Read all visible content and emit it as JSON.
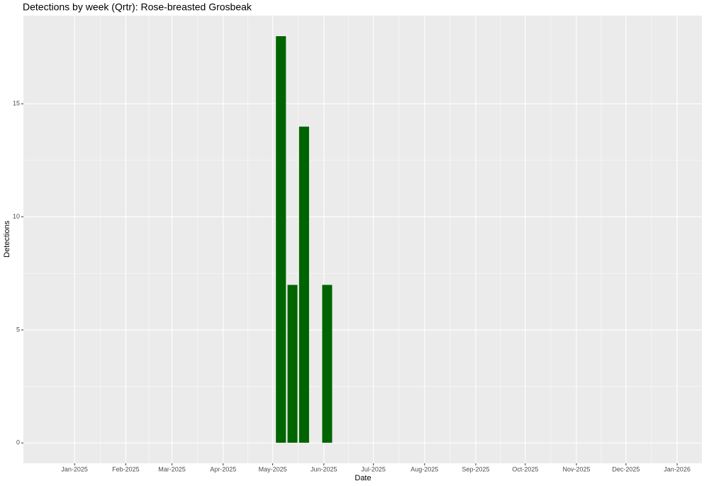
{
  "chart_data": {
    "type": "bar",
    "title": "Detections by week (Qrtr): Rose-breasted Grosbeak",
    "x_label": "Date",
    "y_label": "Detections",
    "x": [
      "2025-05-06",
      "2025-05-13",
      "2025-05-20",
      "2025-06-03"
    ],
    "values": [
      18,
      7,
      14,
      7
    ],
    "color": "#006400",
    "xlim": [
      "2024-12-01",
      "2026-01-16"
    ],
    "xticks": [
      {
        "value": "2025-01-01",
        "label": "Jan-2025"
      },
      {
        "value": "2025-02-01",
        "label": "Feb-2025"
      },
      {
        "value": "2025-03-01",
        "label": "Mar-2025"
      },
      {
        "value": "2025-04-01",
        "label": "Apr-2025"
      },
      {
        "value": "2025-05-01",
        "label": "May-2025"
      },
      {
        "value": "2025-06-01",
        "label": "Jun-2025"
      },
      {
        "value": "2025-07-01",
        "label": "Jul-2025"
      },
      {
        "value": "2025-08-01",
        "label": "Aug-2025"
      },
      {
        "value": "2025-09-01",
        "label": "Sep-2025"
      },
      {
        "value": "2025-10-01",
        "label": "Oct-2025"
      },
      {
        "value": "2025-11-01",
        "label": "Nov-2025"
      },
      {
        "value": "2025-12-01",
        "label": "Dec-2025"
      },
      {
        "value": "2026-01-01",
        "label": "Jan-2026"
      }
    ],
    "ylim": [
      -0.9,
      18.9
    ],
    "yticks": [
      0,
      5,
      10,
      15
    ],
    "grid": true
  }
}
